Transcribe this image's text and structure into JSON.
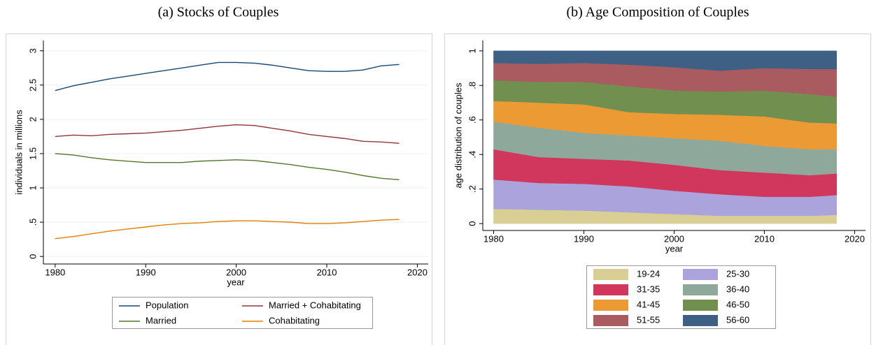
{
  "chart_data": [
    {
      "type": "line",
      "title": "(a) Stocks of Couples",
      "x_label": "year",
      "y_label": "individuals in millions",
      "x": [
        1980,
        1982,
        1984,
        1986,
        1988,
        1990,
        1992,
        1994,
        1996,
        1998,
        2000,
        2002,
        2004,
        2006,
        2008,
        2010,
        2012,
        2014,
        2016,
        2018
      ],
      "series": [
        {
          "name": "Population",
          "color": "#1a476f",
          "values": [
            2.42,
            2.49,
            2.54,
            2.59,
            2.63,
            2.67,
            2.71,
            2.75,
            2.79,
            2.83,
            2.83,
            2.82,
            2.79,
            2.75,
            2.71,
            2.7,
            2.7,
            2.72,
            2.78,
            2.8
          ]
        },
        {
          "name": "Married + Cohabitating",
          "color": "#90353b",
          "values": [
            1.75,
            1.77,
            1.76,
            1.78,
            1.79,
            1.8,
            1.82,
            1.84,
            1.87,
            1.9,
            1.92,
            1.91,
            1.87,
            1.83,
            1.78,
            1.75,
            1.72,
            1.68,
            1.67,
            1.65
          ]
        },
        {
          "name": "Married",
          "color": "#55752f",
          "values": [
            1.5,
            1.48,
            1.44,
            1.41,
            1.39,
            1.37,
            1.37,
            1.37,
            1.39,
            1.4,
            1.41,
            1.4,
            1.37,
            1.34,
            1.3,
            1.27,
            1.23,
            1.18,
            1.14,
            1.12
          ]
        },
        {
          "name": "Cohabitating",
          "color": "#e37e00",
          "values": [
            0.26,
            0.29,
            0.33,
            0.37,
            0.4,
            0.43,
            0.46,
            0.48,
            0.49,
            0.51,
            0.52,
            0.52,
            0.51,
            0.5,
            0.48,
            0.48,
            0.49,
            0.51,
            0.53,
            0.54
          ]
        }
      ],
      "xlim": [
        1978.7,
        2021.2
      ],
      "xticks": [
        1980,
        1990,
        2000,
        2010,
        2020
      ],
      "ylim": [
        -0.11,
        3.15
      ],
      "yticks": [
        0,
        {
          "value": 0.5,
          "label": ".5"
        },
        1,
        1.5,
        2,
        2.5,
        3
      ],
      "grid": true
    },
    {
      "type": "area",
      "title": "(b) Age Composition of Couples",
      "x_label": "year",
      "y_label": "age distribution of couples",
      "x": [
        1980,
        1985,
        1990,
        1995,
        2000,
        2005,
        2010,
        2015,
        2018
      ],
      "series": [
        {
          "name": "19-24",
          "color": "#d9cf94",
          "values": [
            0.085,
            0.08,
            0.075,
            0.065,
            0.055,
            0.045,
            0.045,
            0.045,
            0.05
          ]
        },
        {
          "name": "25-30",
          "color": "#aba3dc",
          "values": [
            0.17,
            0.155,
            0.155,
            0.15,
            0.135,
            0.125,
            0.11,
            0.11,
            0.115
          ]
        },
        {
          "name": "31-35",
          "color": "#d1365c",
          "values": [
            0.175,
            0.15,
            0.145,
            0.15,
            0.15,
            0.14,
            0.14,
            0.125,
            0.125
          ]
        },
        {
          "name": "36-40",
          "color": "#8ea99b",
          "values": [
            0.16,
            0.17,
            0.15,
            0.145,
            0.155,
            0.17,
            0.155,
            0.15,
            0.14
          ]
        },
        {
          "name": "41-45",
          "color": "#ec9b34",
          "values": [
            0.12,
            0.145,
            0.165,
            0.135,
            0.14,
            0.15,
            0.17,
            0.155,
            0.15
          ]
        },
        {
          "name": "46-50",
          "color": "#718f4f",
          "values": [
            0.12,
            0.12,
            0.13,
            0.15,
            0.135,
            0.135,
            0.15,
            0.165,
            0.155
          ]
        },
        {
          "name": "51-55",
          "color": "#a95b5f",
          "values": [
            0.1,
            0.105,
            0.11,
            0.125,
            0.135,
            0.12,
            0.13,
            0.145,
            0.16
          ]
        },
        {
          "name": "56-60",
          "color": "#3e6085",
          "values": [
            0.07,
            0.075,
            0.07,
            0.08,
            0.095,
            0.115,
            0.1,
            0.105,
            0.105
          ]
        }
      ],
      "xlim": [
        1978.8,
        2021.2
      ],
      "xticks": [
        1980,
        1990,
        2000,
        2010,
        2020
      ],
      "ylim": [
        -0.04,
        1.06
      ],
      "yticks": [
        0,
        {
          "value": 0.2,
          "label": ".2"
        },
        {
          "value": 0.4,
          "label": ".4"
        },
        {
          "value": 0.6,
          "label": ".6"
        },
        {
          "value": 0.8,
          "label": ".8"
        },
        1
      ],
      "grid": false
    }
  ]
}
